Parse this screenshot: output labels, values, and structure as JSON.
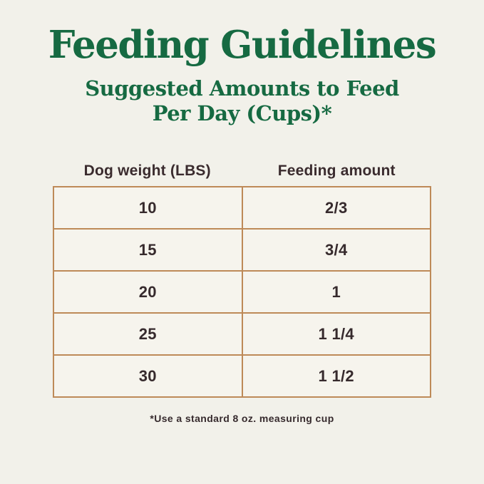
{
  "header": {
    "title": "Feeding Guidelines",
    "subtitle_line1": "Suggested Amounts to Feed",
    "subtitle_line2": "Per Day (Cups)*"
  },
  "chart_data": {
    "type": "table",
    "title": "Feeding Guidelines",
    "subtitle": "Suggested Amounts to Feed Per Day (Cups)*",
    "columns": [
      "Dog weight (LBS)",
      "Feeding amount"
    ],
    "rows": [
      [
        "10",
        "2/3"
      ],
      [
        "15",
        "3/4"
      ],
      [
        "20",
        "1"
      ],
      [
        "25",
        "1 1/4"
      ],
      [
        "30",
        "1 1/2"
      ]
    ],
    "footnote": "*Use a standard 8 oz. measuring cup"
  },
  "colors": {
    "background": "#f2f1ea",
    "heading_green": "#166a42",
    "text_dark": "#362a2d",
    "table_border": "#be8a58",
    "cell_background": "#f6f4ed"
  }
}
